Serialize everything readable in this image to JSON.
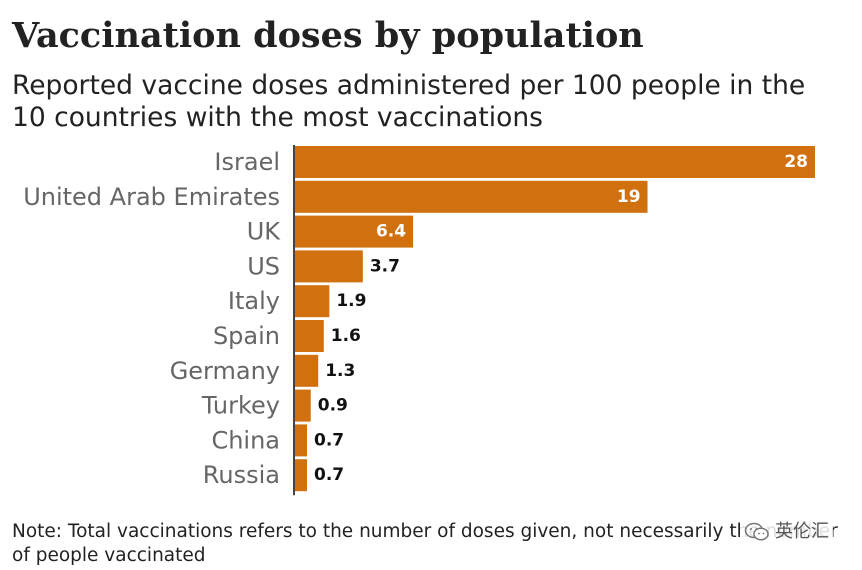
{
  "colors": {
    "bar": "#d1700f",
    "label_inside": "#ffffff",
    "label_outside": "#111111",
    "axis": "#444444"
  },
  "chart_data": {
    "type": "bar",
    "orientation": "horizontal",
    "title": "Vaccination doses by population",
    "subtitle": "Reported vaccine doses administered per 100 people in the 10 countries with the most vaccinations",
    "categories": [
      "Israel",
      "United Arab Emirates",
      "UK",
      "US",
      "Italy",
      "Spain",
      "Germany",
      "Turkey",
      "China",
      "Russia"
    ],
    "values": [
      28,
      19,
      6.4,
      3.7,
      1.9,
      1.6,
      1.3,
      0.9,
      0.7,
      0.7
    ],
    "value_labels": [
      "28",
      "19",
      "6.4",
      "3.7",
      "1.9",
      "1.6",
      "1.3",
      "0.9",
      "0.7",
      "0.7"
    ],
    "xlim": [
      0,
      28
    ],
    "xlabel": "",
    "ylabel": "",
    "grid": false,
    "legend": "none"
  },
  "note": "Note: Total vaccinations refers to the number of doses given, not necessarily the number of people vaccinated",
  "watermark": {
    "text": "英伦汇",
    "icon": "wechat-icon"
  }
}
